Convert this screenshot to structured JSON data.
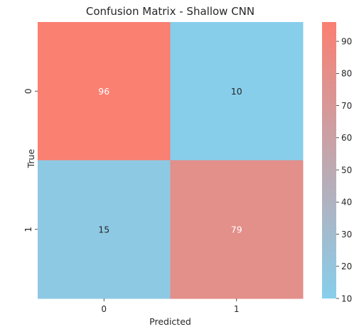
{
  "chart_data": {
    "type": "heatmap",
    "title": "Confusion Matrix - Shallow CNN",
    "xlabel": "Predicted",
    "ylabel": "True",
    "x_categories": [
      "0",
      "1"
    ],
    "y_categories": [
      "0",
      "1"
    ],
    "values": [
      [
        96,
        10
      ],
      [
        15,
        79
      ]
    ],
    "colorbar": {
      "min": 10,
      "max": 96,
      "ticks": [
        10,
        20,
        30,
        40,
        50,
        60,
        70,
        80,
        90
      ],
      "low_color": "#87CEEB",
      "high_color": "#FA8072"
    },
    "annotation_colors": {
      "on_dark": "#ffffff",
      "on_light": "#262626"
    },
    "grid": false
  }
}
